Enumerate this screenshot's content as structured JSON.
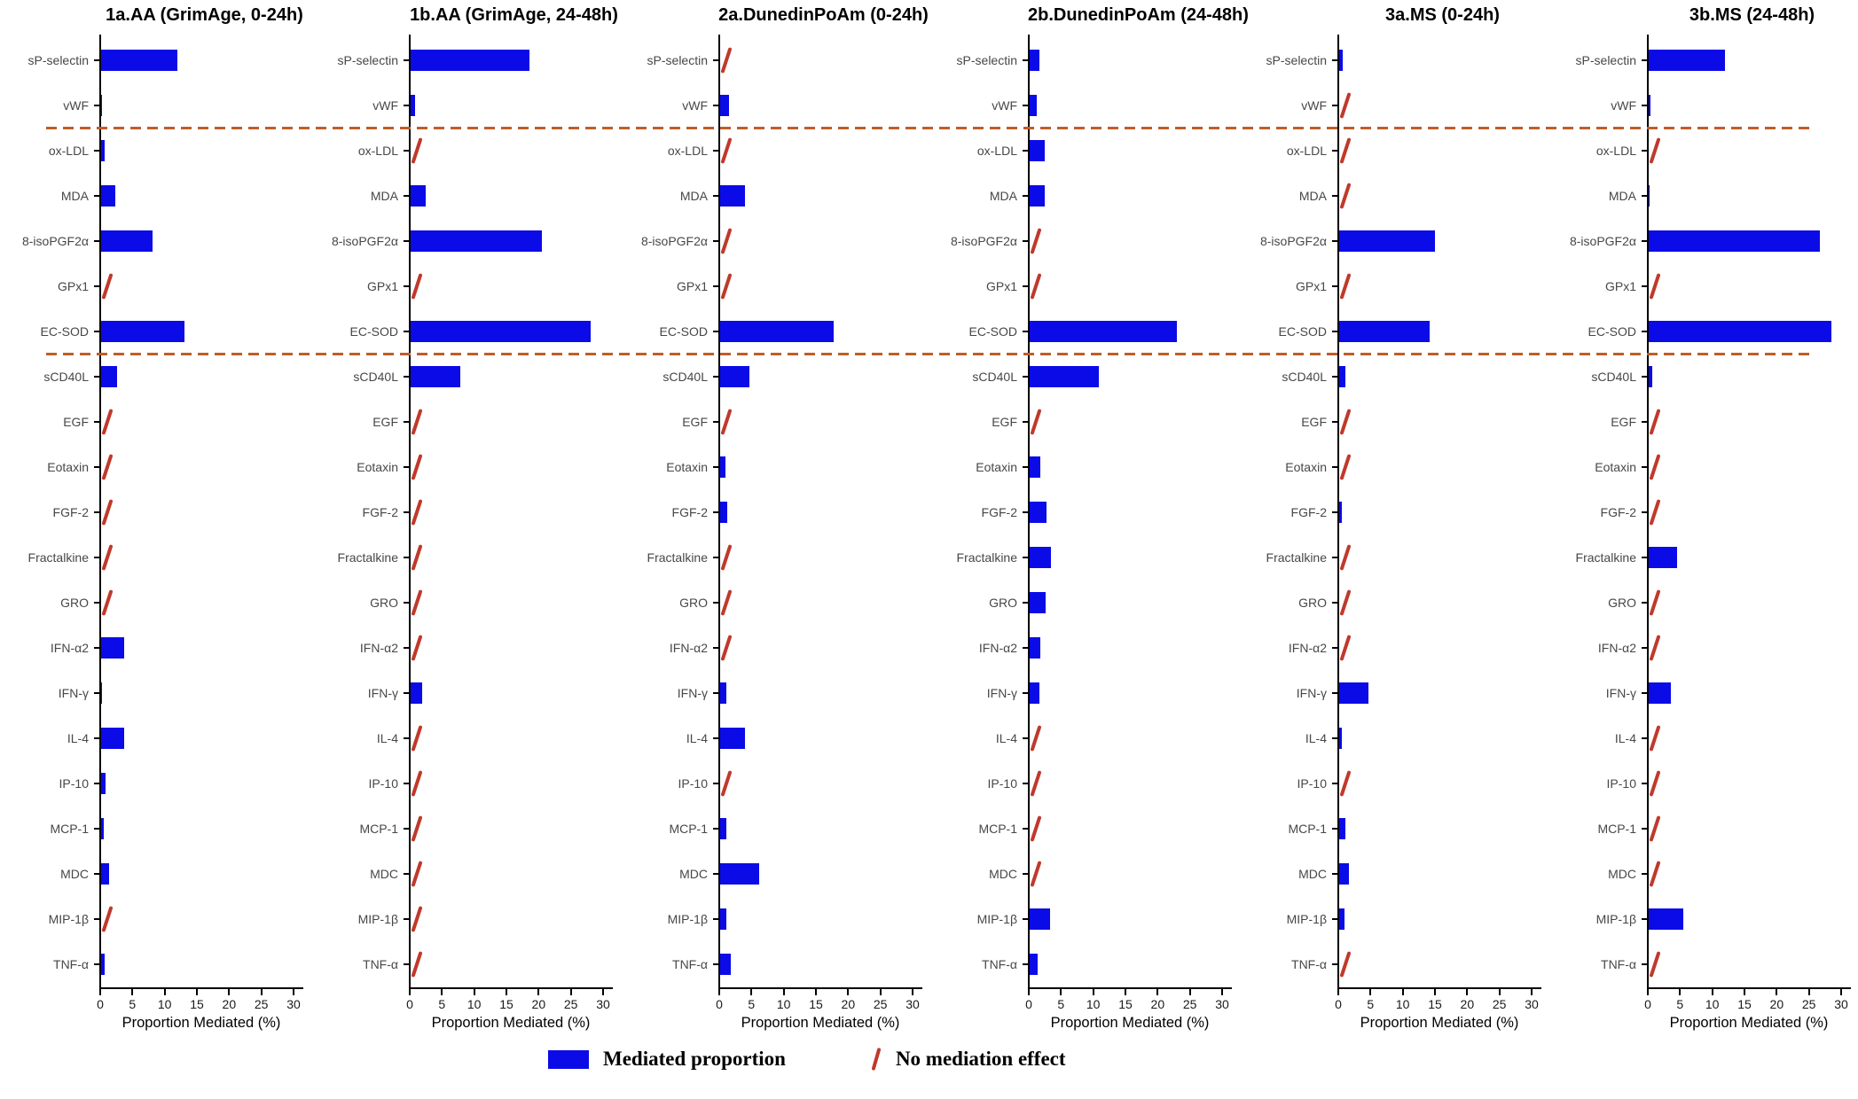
{
  "figure": {
    "xlabel": "Proportion Mediated (%)",
    "legend": {
      "mediated_label": "Mediated proportion",
      "no_effect_label": "No mediation effect"
    },
    "colors": {
      "bar_blue": "#0b0be8",
      "slash_red": "#c0392b",
      "separator_orange": "#c05d28",
      "axis_black": "#000000",
      "category_text": "#474747"
    }
  },
  "chart_data": {
    "type": "bar",
    "orientation": "horizontal",
    "xlabel": "Proportion Mediated (%)",
    "x_ticks": [
      0,
      5,
      10,
      15,
      20,
      25,
      30
    ],
    "xlim": [
      0,
      31.5
    ],
    "value_unit": "percent",
    "grid": false,
    "legend_position": "bottom-center",
    "null_value_meaning": "No mediation effect (red slash marker)",
    "categories": [
      "sP-selectin",
      "vWF",
      "ox-LDL",
      "MDA",
      "8-isoPGF2α",
      "GPx1",
      "EC-SOD",
      "sCD40L",
      "EGF",
      "Eotaxin",
      "FGF-2",
      "Fractalkine",
      "GRO",
      "IFN-α2",
      "IFN-γ",
      "IL-4",
      "IP-10",
      "MCP-1",
      "MDC",
      "MIP-1β",
      "TNF-α"
    ],
    "group_separators_after_index": [
      1,
      6
    ],
    "panels": [
      {
        "title": "1a.AA (GrimAge, 0-24h)",
        "values": [
          11.8,
          0.2,
          0.5,
          2.2,
          8.0,
          null,
          13.0,
          2.5,
          null,
          null,
          null,
          null,
          null,
          3.6,
          0.1,
          3.6,
          0.7,
          0.45,
          1.2,
          null,
          0.5
        ]
      },
      {
        "title": "1b.AA (GrimAge, 24-48h)",
        "values": [
          18.5,
          0.7,
          null,
          2.4,
          20.4,
          null,
          27.9,
          7.7,
          null,
          null,
          null,
          null,
          null,
          null,
          1.8,
          null,
          null,
          null,
          null,
          null,
          null
        ]
      },
      {
        "title": "2a.DunedinPoAm (0-24h)",
        "values": [
          null,
          1.4,
          null,
          3.9,
          null,
          null,
          17.6,
          4.6,
          null,
          0.8,
          1.1,
          null,
          null,
          null,
          1.0,
          3.9,
          null,
          1.0,
          6.1,
          0.9,
          1.7
        ]
      },
      {
        "title": "2b.DunedinPoAm (24-48h)",
        "values": [
          1.5,
          1.1,
          2.4,
          2.4,
          null,
          null,
          22.8,
          10.8,
          null,
          1.7,
          2.6,
          3.3,
          2.5,
          1.6,
          1.5,
          null,
          null,
          null,
          null,
          3.2,
          1.3
        ]
      },
      {
        "title": "3a.MS (0-24h)",
        "values": [
          0.6,
          null,
          null,
          null,
          14.8,
          null,
          14.1,
          1.0,
          null,
          null,
          0.4,
          null,
          null,
          null,
          4.5,
          0.45,
          null,
          1.0,
          1.5,
          0.8,
          null
        ]
      },
      {
        "title": "3b.MS (24-48h)",
        "values": [
          11.8,
          0.3,
          null,
          0.1,
          26.5,
          null,
          28.3,
          0.6,
          null,
          null,
          null,
          4.4,
          null,
          null,
          3.5,
          null,
          null,
          null,
          null,
          5.4,
          null
        ]
      }
    ]
  }
}
